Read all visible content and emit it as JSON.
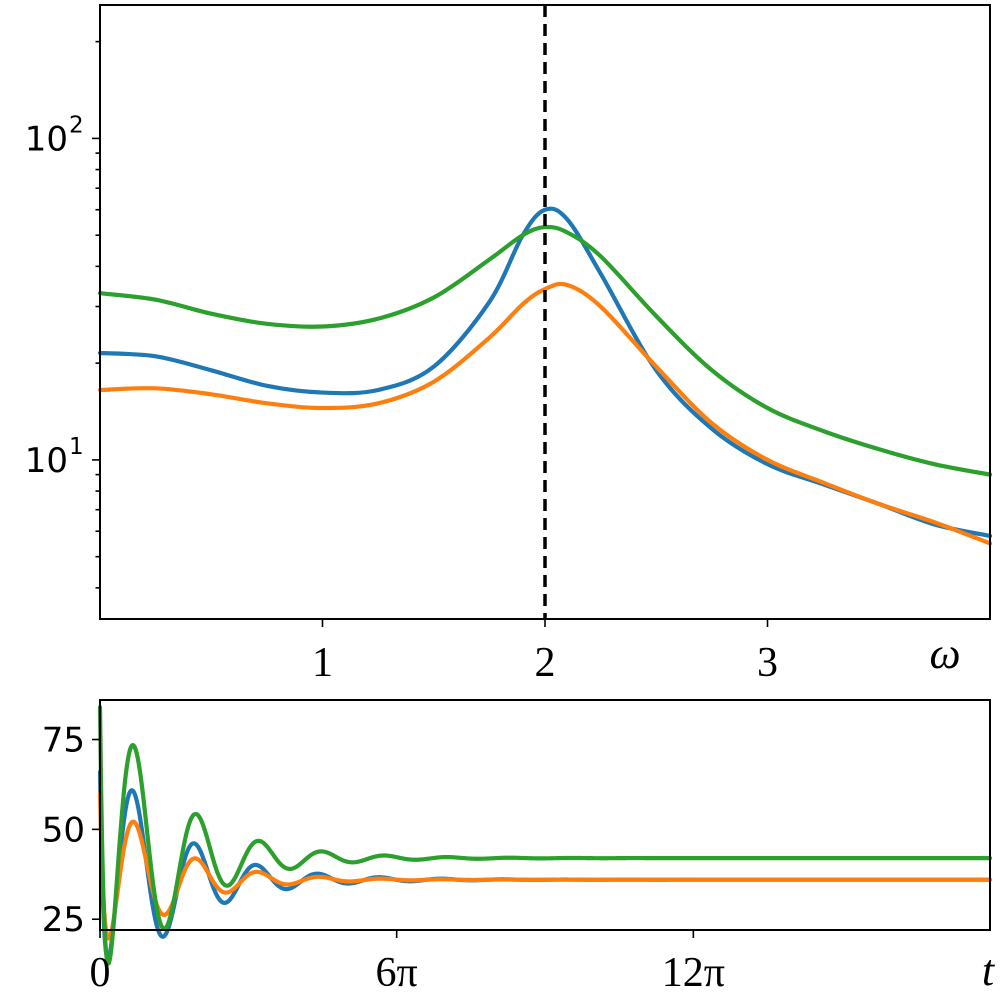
{
  "chart_data": [
    {
      "type": "line",
      "xlabel": "ω",
      "ylabel": "",
      "yscale": "log",
      "xlim": [
        0,
        4
      ],
      "ylim": [
        3.2,
        260
      ],
      "x_ticks": [
        1,
        2,
        3
      ],
      "x_tick_labels": [
        "1",
        "2",
        "3"
      ],
      "y_ticks": [
        10,
        100
      ],
      "y_tick_labels": [
        {
          "base": "10",
          "exp": "1"
        },
        {
          "base": "10",
          "exp": "2"
        }
      ],
      "reference_line": {
        "x": 2,
        "style": "dashed",
        "color": "#000000"
      },
      "grid": false,
      "x": [
        0,
        0.25,
        0.5,
        0.75,
        1.0,
        1.25,
        1.5,
        1.75,
        1.9,
        2.0,
        2.1,
        2.25,
        2.5,
        2.75,
        3.0,
        3.25,
        3.5,
        3.75,
        4.0
      ],
      "series": [
        {
          "color": "#1f77b4",
          "values": [
            21.5,
            21,
            19,
            17,
            16.2,
            16.5,
            19.5,
            31,
            50,
            60,
            56,
            38,
            19,
            12.5,
            9.7,
            8.4,
            7.3,
            6.3,
            5.8
          ]
        },
        {
          "color": "#ff7f0e",
          "values": [
            16.5,
            16.7,
            16,
            15,
            14.5,
            15,
            17.5,
            24,
            30.5,
            34,
            35,
            30,
            19.5,
            13,
            10,
            8.5,
            7.3,
            6.4,
            5.5
          ]
        },
        {
          "color": "#2ca02c",
          "values": [
            33,
            31.5,
            28.5,
            26.5,
            26,
            27.5,
            32,
            42,
            50,
            53,
            51,
            43,
            28,
            19,
            14.5,
            12.3,
            10.8,
            9.7,
            9.0
          ]
        }
      ]
    },
    {
      "type": "line",
      "xlabel": "t",
      "ylabel": "",
      "xlim": [
        0,
        18.0
      ],
      "ylim": [
        22,
        86
      ],
      "x_ticks": [
        0,
        6,
        12
      ],
      "x_tick_labels": [
        "0",
        "6π",
        "12π"
      ],
      "x_unit_note": "x values in multiples of π",
      "y_ticks": [
        25,
        50,
        75
      ],
      "y_tick_labels": [
        "25",
        "50",
        "75"
      ],
      "grid": false,
      "series": [
        {
          "color": "#1f77b4",
          "final": 36,
          "start": 66,
          "amp": 40,
          "decay": 0.72,
          "period": 1.25,
          "phase": 2.9
        },
        {
          "color": "#ff7f0e",
          "final": 36,
          "start": 60,
          "amp": 28,
          "decay": 0.8,
          "period": 1.25,
          "phase": 2.75
        },
        {
          "color": "#2ca02c",
          "final": 42,
          "start": 84,
          "amp": 52,
          "decay": 0.74,
          "period": 1.27,
          "phase": 2.85
        }
      ]
    }
  ]
}
